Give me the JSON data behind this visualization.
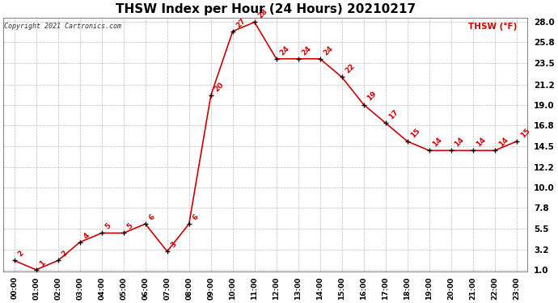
{
  "title": "THSW Index per Hour (24 Hours) 20210217",
  "copyright": "Copyright 2021 Cartronics.com",
  "legend_label": "THSW (°F)",
  "hours": [
    "00:00",
    "01:00",
    "02:00",
    "03:00",
    "04:00",
    "05:00",
    "06:00",
    "07:00",
    "08:00",
    "09:00",
    "10:00",
    "11:00",
    "12:00",
    "13:00",
    "14:00",
    "15:00",
    "16:00",
    "17:00",
    "18:00",
    "19:00",
    "20:00",
    "21:00",
    "22:00",
    "23:00"
  ],
  "values": [
    2,
    1,
    2,
    4,
    5,
    5,
    6,
    3,
    6,
    20,
    27,
    28,
    24,
    24,
    24,
    22,
    19,
    17,
    15,
    14,
    14,
    14,
    14,
    15
  ],
  "line_color": "#cc0000",
  "marker_color": "#000000",
  "grid_color": "#bbbbbb",
  "bg_color": "#ffffff",
  "title_fontsize": 11,
  "ylim_min": 1.0,
  "ylim_max": 28.0,
  "yticks": [
    1.0,
    3.2,
    5.5,
    7.8,
    10.0,
    12.2,
    14.5,
    16.8,
    19.0,
    21.2,
    23.5,
    25.8,
    28.0
  ]
}
